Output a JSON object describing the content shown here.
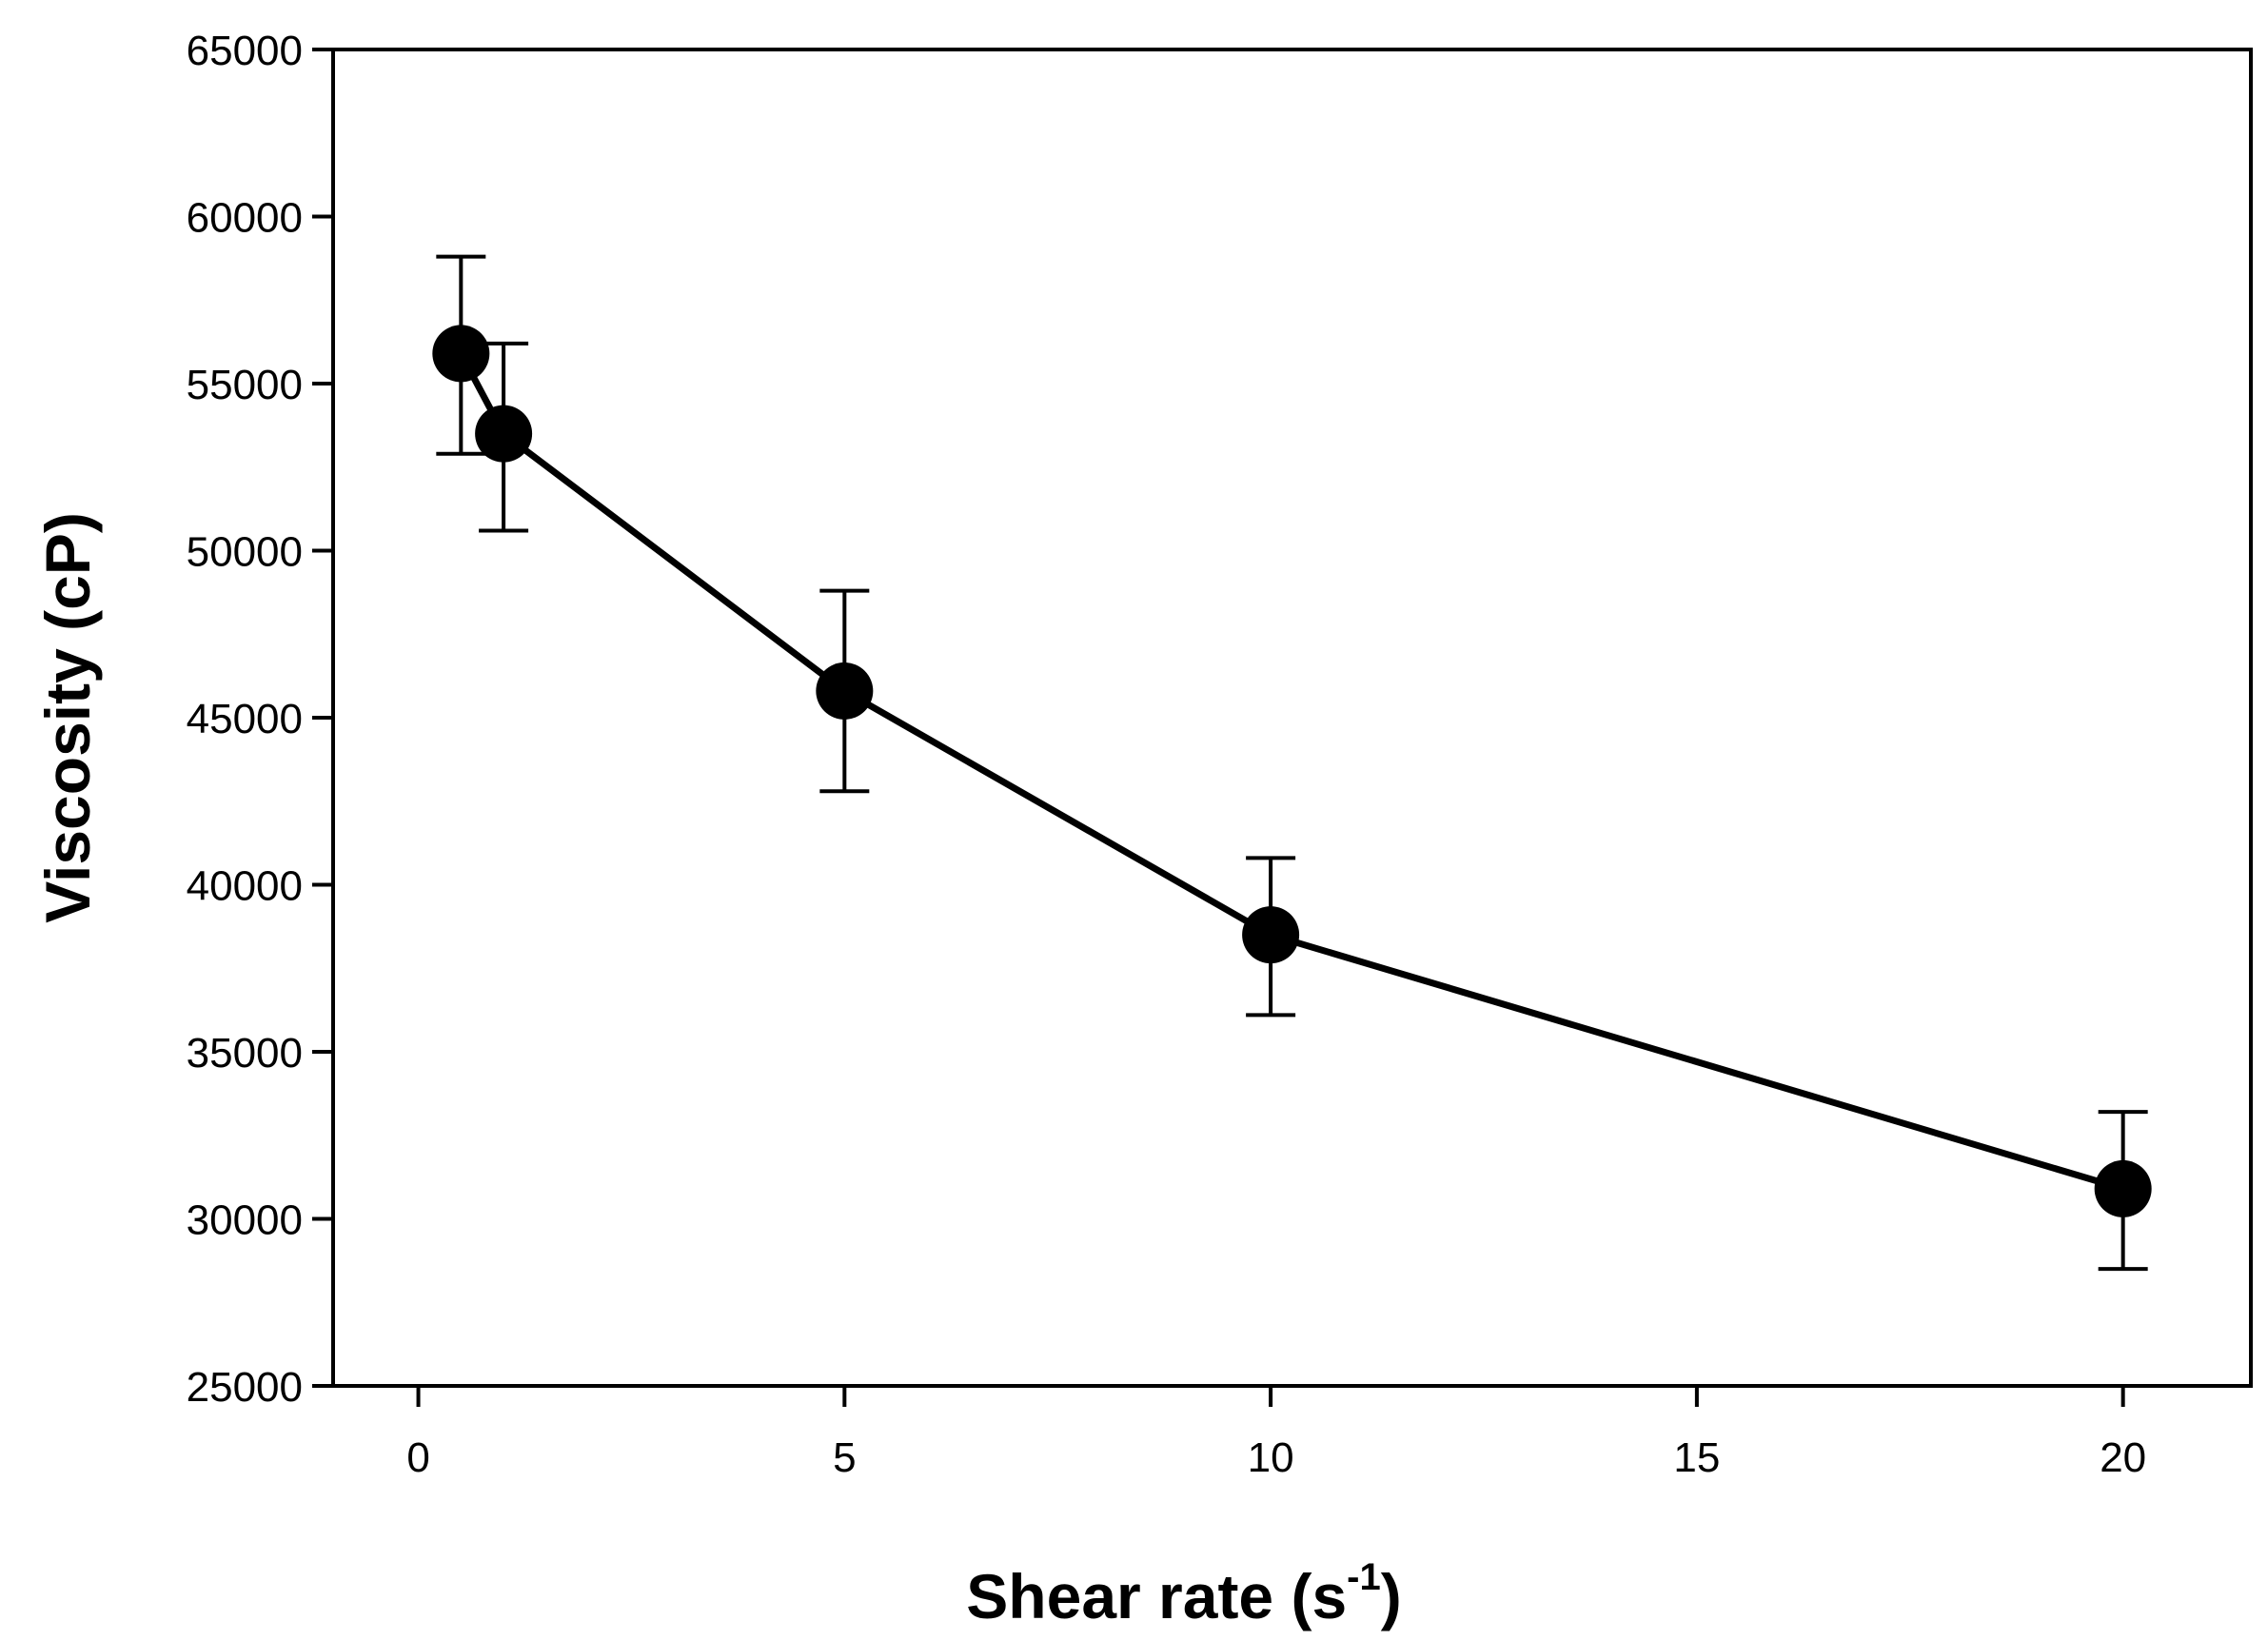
{
  "chart_data": {
    "type": "line",
    "title": "",
    "xlabel": {
      "main": "Shear rate (s",
      "sup": "-1",
      "close": ")"
    },
    "ylabel": "Viscosity (cP)",
    "xlim": [
      -1,
      21.5
    ],
    "ylim": [
      25000,
      65000
    ],
    "xticks": [
      0,
      5,
      10,
      15,
      20
    ],
    "yticks": [
      25000,
      30000,
      35000,
      40000,
      45000,
      50000,
      55000,
      60000,
      65000
    ],
    "grid": false,
    "series": [
      {
        "name": "Viscosity",
        "color": "#000000",
        "x": [
          0.5,
          1,
          5,
          10,
          20
        ],
        "y": [
          55900,
          53500,
          45800,
          38500,
          30900
        ],
        "err_low": [
          52900,
          50600,
          42800,
          36100,
          28500
        ],
        "err_high": [
          58800,
          56200,
          48800,
          40800,
          33200
        ]
      }
    ]
  }
}
